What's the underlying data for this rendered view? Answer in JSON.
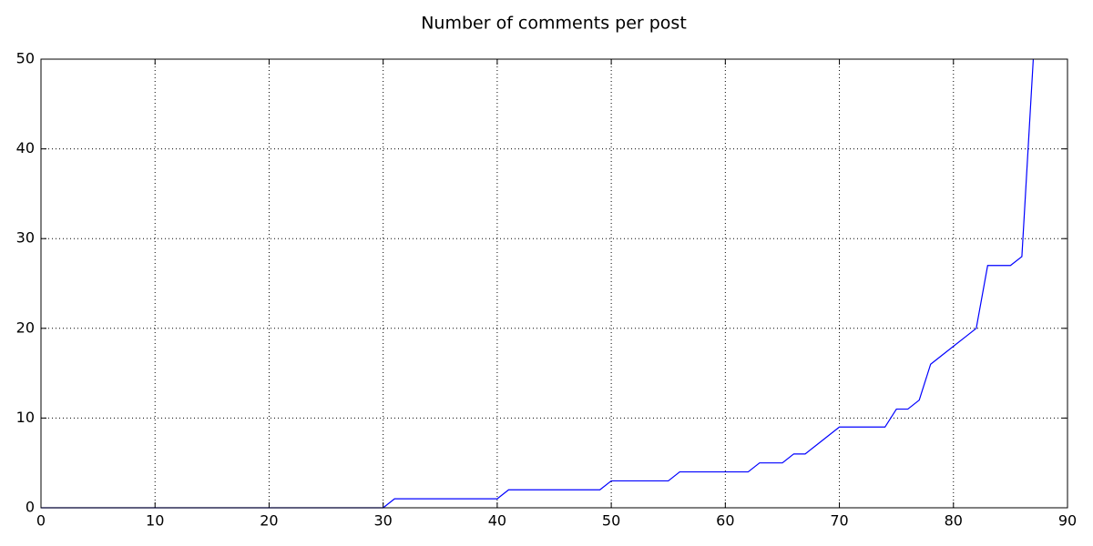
{
  "chart_data": {
    "type": "line",
    "title": "Number of comments per post",
    "x": [
      0,
      1,
      2,
      3,
      4,
      5,
      6,
      7,
      8,
      9,
      10,
      11,
      12,
      13,
      14,
      15,
      16,
      17,
      18,
      19,
      20,
      21,
      22,
      23,
      24,
      25,
      26,
      27,
      28,
      29,
      30,
      31,
      32,
      33,
      34,
      35,
      36,
      37,
      38,
      39,
      40,
      41,
      42,
      43,
      44,
      45,
      46,
      47,
      48,
      49,
      50,
      51,
      52,
      53,
      54,
      55,
      56,
      57,
      58,
      59,
      60,
      61,
      62,
      63,
      64,
      65,
      66,
      67,
      68,
      69,
      70,
      71,
      72,
      73,
      74,
      75,
      76,
      77,
      78,
      79,
      80,
      81,
      82,
      83,
      84,
      85,
      86,
      87
    ],
    "series": [
      {
        "color": "#0000ff",
        "values": [
          0,
          0,
          0,
          0,
          0,
          0,
          0,
          0,
          0,
          0,
          0,
          0,
          0,
          0,
          0,
          0,
          0,
          0,
          0,
          0,
          0,
          0,
          0,
          0,
          0,
          0,
          0,
          0,
          0,
          0,
          0,
          1,
          1,
          1,
          1,
          1,
          1,
          1,
          1,
          1,
          1,
          2,
          2,
          2,
          2,
          2,
          2,
          2,
          2,
          2,
          3,
          3,
          3,
          3,
          3,
          3,
          4,
          4,
          4,
          4,
          4,
          4,
          4,
          5,
          5,
          5,
          6,
          6,
          7,
          8,
          9,
          9,
          9,
          9,
          9,
          11,
          11,
          12,
          16,
          17,
          18,
          19,
          20,
          27,
          27,
          27,
          28,
          50
        ]
      }
    ],
    "xlim": [
      0,
      90
    ],
    "xticks": [
      0,
      10,
      20,
      30,
      40,
      50,
      60,
      70,
      80,
      90
    ],
    "ylim": [
      0,
      50
    ],
    "yticks": [
      0,
      10,
      20,
      30,
      40,
      50
    ],
    "grid": true
  }
}
